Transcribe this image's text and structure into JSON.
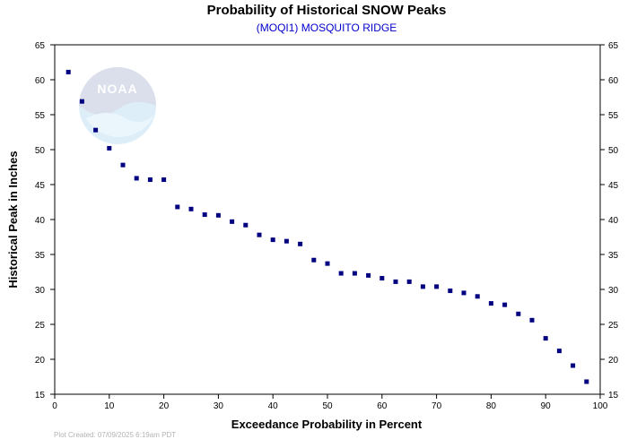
{
  "chart_data": {
    "type": "scatter",
    "title": "Probability of Historical SNOW Peaks",
    "subtitle": "(MOQI1) MOSQUITO RIDGE",
    "xlabel": "Exceedance Probability in Percent",
    "ylabel": "Historical Peak in Inches",
    "xlim": [
      0,
      100
    ],
    "ylim": [
      15,
      65
    ],
    "x_ticks": [
      0,
      10,
      20,
      30,
      40,
      50,
      60,
      70,
      80,
      90,
      100
    ],
    "y_ticks": [
      15,
      20,
      25,
      30,
      35,
      40,
      45,
      50,
      55,
      60,
      65
    ],
    "grid": false,
    "marker_color": "#000080",
    "points": [
      {
        "x": 2.5,
        "y": 61.1
      },
      {
        "x": 5.0,
        "y": 56.9
      },
      {
        "x": 7.5,
        "y": 52.8
      },
      {
        "x": 10.0,
        "y": 50.2
      },
      {
        "x": 12.5,
        "y": 47.8
      },
      {
        "x": 15.0,
        "y": 45.9
      },
      {
        "x": 17.5,
        "y": 45.7
      },
      {
        "x": 20.0,
        "y": 45.7
      },
      {
        "x": 22.5,
        "y": 41.8
      },
      {
        "x": 25.0,
        "y": 41.5
      },
      {
        "x": 27.5,
        "y": 40.7
      },
      {
        "x": 30.0,
        "y": 40.6
      },
      {
        "x": 32.5,
        "y": 39.7
      },
      {
        "x": 35.0,
        "y": 39.2
      },
      {
        "x": 37.5,
        "y": 37.8
      },
      {
        "x": 40.0,
        "y": 37.1
      },
      {
        "x": 42.5,
        "y": 36.9
      },
      {
        "x": 45.0,
        "y": 36.5
      },
      {
        "x": 47.5,
        "y": 34.2
      },
      {
        "x": 50.0,
        "y": 33.7
      },
      {
        "x": 52.5,
        "y": 32.3
      },
      {
        "x": 55.0,
        "y": 32.3
      },
      {
        "x": 57.5,
        "y": 32.0
      },
      {
        "x": 60.0,
        "y": 31.6
      },
      {
        "x": 62.5,
        "y": 31.1
      },
      {
        "x": 65.0,
        "y": 31.1
      },
      {
        "x": 67.5,
        "y": 30.4
      },
      {
        "x": 70.0,
        "y": 30.4
      },
      {
        "x": 72.5,
        "y": 29.8
      },
      {
        "x": 75.0,
        "y": 29.5
      },
      {
        "x": 77.5,
        "y": 29.0
      },
      {
        "x": 80.0,
        "y": 28.0
      },
      {
        "x": 82.5,
        "y": 27.8
      },
      {
        "x": 85.0,
        "y": 26.5
      },
      {
        "x": 87.5,
        "y": 25.6
      },
      {
        "x": 90.0,
        "y": 23.0
      },
      {
        "x": 92.5,
        "y": 21.2
      },
      {
        "x": 95.0,
        "y": 19.1
      },
      {
        "x": 97.5,
        "y": 16.8
      }
    ]
  },
  "logo": {
    "text": "NOAA",
    "icon": "noaa-watermark-icon"
  },
  "footer": {
    "plot_created": "Plot Created: 07/09/2025 6:19am PDT"
  }
}
